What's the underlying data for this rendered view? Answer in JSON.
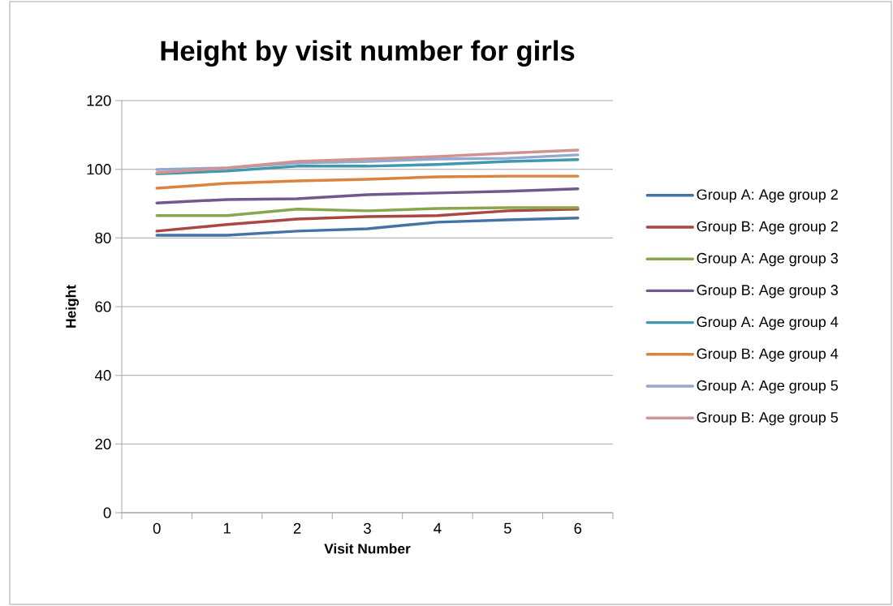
{
  "chart_data": {
    "type": "line",
    "title": "Height by visit number for girls",
    "xlabel": "Visit Number",
    "ylabel": "Height",
    "categories": [
      "0",
      "1",
      "2",
      "3",
      "4",
      "5",
      "6"
    ],
    "series": [
      {
        "name": "Group A: Age group 2",
        "color": "#4572a7",
        "values": [
          80.8,
          80.8,
          82,
          82.7,
          84.6,
          85.3,
          85.8
        ]
      },
      {
        "name": "Group B: Age group 2",
        "color": "#aa4643",
        "values": [
          82,
          83.9,
          85.5,
          86.2,
          86.5,
          87.9,
          88.4
        ]
      },
      {
        "name": "Group A: Age group 3",
        "color": "#89a54e",
        "values": [
          86.5,
          86.5,
          88.4,
          87.9,
          88.6,
          88.8,
          88.8
        ]
      },
      {
        "name": "Group B: Age group 3",
        "color": "#71588f",
        "values": [
          90.2,
          91.2,
          91.4,
          92.6,
          93.1,
          93.6,
          94.3
        ]
      },
      {
        "name": "Group A: Age group 4",
        "color": "#4198af",
        "values": [
          98.7,
          99.5,
          100.9,
          100.9,
          101.4,
          102.3,
          102.8
        ]
      },
      {
        "name": "Group B: Age group 4",
        "color": "#db843d",
        "values": [
          94.5,
          95.9,
          96.6,
          97.1,
          97.8,
          98,
          98
        ]
      },
      {
        "name": "Group A: Age group 5",
        "color": "#93a9cf",
        "values": [
          99.9,
          100.4,
          101.8,
          102.3,
          103,
          103.2,
          104.2
        ]
      },
      {
        "name": "Group B: Age group 5",
        "color": "#d19392",
        "values": [
          99,
          100.4,
          102.3,
          103,
          103.7,
          104.7,
          105.6
        ]
      }
    ],
    "ylim": [
      0,
      120
    ],
    "yticks": [
      0,
      20,
      40,
      60,
      80,
      100,
      120
    ],
    "grid": "y",
    "legend": "right",
    "marker": "none",
    "line_style": "solid"
  }
}
